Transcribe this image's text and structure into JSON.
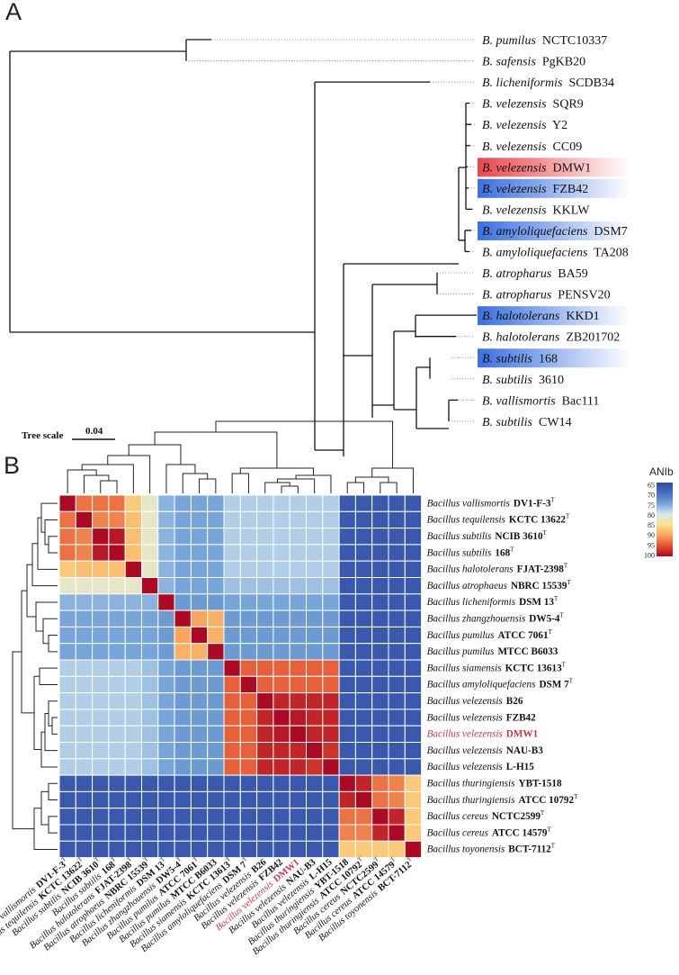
{
  "panel_a": {
    "label": "A",
    "leaves": [
      {
        "species": "B. pumilus",
        "strain": "NCTC10337",
        "highlight": ""
      },
      {
        "species": "B. safensis",
        "strain": "PgKB20",
        "highlight": ""
      },
      {
        "species": "B. licheniformis",
        "strain": "SCDB34",
        "highlight": ""
      },
      {
        "species": "B. velezensis",
        "strain": "SQR9",
        "highlight": ""
      },
      {
        "species": "B. velezensis",
        "strain": "Y2",
        "highlight": ""
      },
      {
        "species": "B. velezensis",
        "strain": "CC09",
        "highlight": ""
      },
      {
        "species": "B. velezensis",
        "strain": "DMW1",
        "highlight": "red"
      },
      {
        "species": "B. velezensis",
        "strain": "FZB42",
        "highlight": "blue"
      },
      {
        "species": "B. velezensis",
        "strain": "KKLW",
        "highlight": ""
      },
      {
        "species": "B. amyloliquefaciens",
        "strain": "DSM7",
        "highlight": "blue"
      },
      {
        "species": "B. amyloliquefaciens",
        "strain": "TA208",
        "highlight": ""
      },
      {
        "species": "B. atropharus",
        "strain": "BA59",
        "highlight": ""
      },
      {
        "species": "B. atropharus",
        "strain": "PENSV20",
        "highlight": ""
      },
      {
        "species": "B. halotolerans",
        "strain": "KKD1",
        "highlight": "blue"
      },
      {
        "species": "B. halotolerans",
        "strain": "ZB201702",
        "highlight": ""
      },
      {
        "species": "B. subtilis",
        "strain": "168",
        "highlight": "blue"
      },
      {
        "species": "B. subtilis",
        "strain": "3610",
        "highlight": ""
      },
      {
        "species": "B. vallismortis",
        "strain": "Bac111",
        "highlight": ""
      },
      {
        "species": "B. subtilis",
        "strain": "CW14",
        "highlight": ""
      }
    ],
    "tree_scale": {
      "label": "Tree scale",
      "value": "0.04"
    }
  },
  "panel_b": {
    "label": "B",
    "legend": {
      "title": "ANIb",
      "ticks": [
        "65",
        "70",
        "75",
        "80",
        "85",
        "90",
        "95",
        "100"
      ]
    },
    "highlight_color": "#c0394b"
  },
  "chart_data": {
    "type": "heatmap",
    "title": "ANIb",
    "value_range": [
      65,
      100
    ],
    "rows": [
      {
        "species": "Bacillus vallismortis",
        "strain": "DV1-F-3",
        "type": "T",
        "highlight": false
      },
      {
        "species": "Bacillus tequilensis",
        "strain": "KCTC 13622",
        "type": "T",
        "highlight": false
      },
      {
        "species": "Bacillus subtilis",
        "strain": "NCIB 3610",
        "type": "T",
        "highlight": false
      },
      {
        "species": "Bacillus subtilis",
        "strain": "168",
        "type": "T",
        "highlight": false
      },
      {
        "species": "Bacillus halotolerans",
        "strain": "FJAT-2398",
        "type": "T",
        "highlight": false
      },
      {
        "species": "Bacillus atrophaeus",
        "strain": "NBRC 15539",
        "type": "T",
        "highlight": false
      },
      {
        "species": "Bacillus licheniformis",
        "strain": "DSM 13",
        "type": "T",
        "highlight": false
      },
      {
        "species": "Bacillus zhangzhouensis",
        "strain": "DW5-4",
        "type": "T",
        "highlight": false
      },
      {
        "species": "Bacillus pumilus",
        "strain": "ATCC 7061",
        "type": "T",
        "highlight": false
      },
      {
        "species": "Bacillus pumilus",
        "strain": "MTCC B6033",
        "type": "",
        "highlight": false
      },
      {
        "species": "Bacillus siamensis",
        "strain": "KCTC 13613",
        "type": "T",
        "highlight": false
      },
      {
        "species": "Bacillus amyloliquefaciens",
        "strain": "DSM 7",
        "type": "T",
        "highlight": false
      },
      {
        "species": "Bacillus velezensis",
        "strain": "B26",
        "type": "",
        "highlight": false
      },
      {
        "species": "Bacillus velezensis",
        "strain": "FZB42",
        "type": "",
        "highlight": false
      },
      {
        "species": "Bacillus velezensis",
        "strain": "DMW1",
        "type": "",
        "highlight": true
      },
      {
        "species": "Bacillus velezensis",
        "strain": "NAU-B3",
        "type": "",
        "highlight": false
      },
      {
        "species": "Bacillus velezensis",
        "strain": "L-H15",
        "type": "",
        "highlight": false
      },
      {
        "species": "Bacillus thuringiensis",
        "strain": "YBT-1518",
        "type": "",
        "highlight": false
      },
      {
        "species": "Bacillus thuringiensis",
        "strain": "ATCC 10792",
        "type": "T",
        "highlight": false
      },
      {
        "species": "Bacillus cereus",
        "strain": "NCTC2599",
        "type": "T",
        "highlight": false
      },
      {
        "species": "Bacillus cereus",
        "strain": "ATCC 14579",
        "type": "T",
        "highlight": false
      },
      {
        "species": "Bacillus toyonensis",
        "strain": "BCT-7112",
        "type": "T",
        "highlight": false
      }
    ],
    "matrix": [
      [
        100,
        93,
        93,
        93,
        87,
        82,
        76,
        75,
        75,
        75,
        78,
        78,
        78,
        78,
        78,
        78,
        78,
        67,
        67,
        67,
        67,
        67
      ],
      [
        93,
        100,
        92,
        92,
        88,
        82,
        76,
        75,
        75,
        75,
        78,
        78,
        78,
        78,
        78,
        78,
        78,
        67,
        67,
        67,
        67,
        67
      ],
      [
        93,
        92,
        100,
        99,
        88,
        82,
        76,
        75,
        75,
        75,
        78,
        78,
        78,
        78,
        78,
        78,
        78,
        67,
        67,
        67,
        67,
        67
      ],
      [
        93,
        92,
        99,
        100,
        88,
        82,
        76,
        75,
        75,
        75,
        78,
        78,
        78,
        78,
        78,
        78,
        78,
        67,
        67,
        67,
        67,
        67
      ],
      [
        87,
        88,
        88,
        88,
        100,
        82,
        76,
        75,
        75,
        75,
        78,
        78,
        78,
        78,
        78,
        78,
        78,
        67,
        67,
        67,
        67,
        67
      ],
      [
        82,
        82,
        82,
        82,
        82,
        100,
        76,
        75,
        75,
        75,
        77,
        77,
        77,
        77,
        77,
        77,
        77,
        67,
        67,
        67,
        67,
        67
      ],
      [
        76,
        76,
        76,
        76,
        76,
        76,
        100,
        74,
        74,
        74,
        75,
        75,
        75,
        75,
        75,
        75,
        75,
        67,
        67,
        67,
        67,
        67
      ],
      [
        75,
        75,
        75,
        75,
        75,
        75,
        74,
        100,
        90,
        89,
        74,
        74,
        74,
        74,
        74,
        74,
        74,
        67,
        67,
        67,
        67,
        67
      ],
      [
        75,
        75,
        75,
        75,
        75,
        75,
        74,
        90,
        100,
        89,
        74,
        74,
        74,
        74,
        74,
        74,
        74,
        67,
        67,
        67,
        67,
        67
      ],
      [
        75,
        75,
        75,
        75,
        75,
        75,
        74,
        89,
        89,
        100,
        74,
        74,
        74,
        74,
        74,
        74,
        74,
        67,
        67,
        67,
        67,
        67
      ],
      [
        78,
        78,
        78,
        78,
        78,
        77,
        75,
        74,
        74,
        74,
        100,
        94,
        94,
        94,
        94,
        94,
        94,
        67,
        67,
        67,
        67,
        67
      ],
      [
        78,
        78,
        78,
        78,
        78,
        77,
        75,
        74,
        74,
        74,
        94,
        100,
        94,
        94,
        94,
        94,
        94,
        67,
        67,
        67,
        67,
        67
      ],
      [
        78,
        78,
        78,
        78,
        78,
        77,
        75,
        74,
        74,
        74,
        94,
        94,
        100,
        98,
        98,
        98,
        98,
        67,
        67,
        67,
        67,
        67
      ],
      [
        78,
        78,
        78,
        78,
        78,
        77,
        75,
        74,
        74,
        74,
        94,
        94,
        98,
        100,
        99,
        98,
        98,
        67,
        67,
        67,
        67,
        67
      ],
      [
        78,
        78,
        78,
        78,
        78,
        77,
        75,
        74,
        74,
        74,
        94,
        94,
        98,
        99,
        100,
        98,
        98,
        67,
        67,
        67,
        67,
        67
      ],
      [
        78,
        78,
        78,
        78,
        78,
        77,
        75,
        74,
        74,
        74,
        94,
        94,
        98,
        98,
        98,
        100,
        97,
        67,
        67,
        67,
        67,
        67
      ],
      [
        78,
        78,
        78,
        78,
        78,
        77,
        75,
        74,
        74,
        74,
        94,
        94,
        98,
        98,
        98,
        97,
        100,
        67,
        67,
        67,
        67,
        67
      ],
      [
        67,
        67,
        67,
        67,
        67,
        67,
        67,
        67,
        67,
        67,
        67,
        67,
        67,
        67,
        67,
        67,
        67,
        100,
        98,
        93,
        92,
        87
      ],
      [
        67,
        67,
        67,
        67,
        67,
        67,
        67,
        67,
        67,
        67,
        67,
        67,
        67,
        67,
        67,
        67,
        67,
        98,
        100,
        93,
        92,
        87
      ],
      [
        67,
        67,
        67,
        67,
        67,
        67,
        67,
        67,
        67,
        67,
        67,
        67,
        67,
        67,
        67,
        67,
        67,
        93,
        93,
        100,
        98,
        87
      ],
      [
        67,
        67,
        67,
        67,
        67,
        67,
        67,
        67,
        67,
        67,
        67,
        67,
        67,
        67,
        67,
        67,
        67,
        92,
        92,
        98,
        100,
        87
      ],
      [
        67,
        67,
        67,
        67,
        67,
        67,
        67,
        67,
        67,
        67,
        67,
        67,
        67,
        67,
        67,
        67,
        67,
        87,
        87,
        87,
        87,
        100
      ]
    ]
  }
}
